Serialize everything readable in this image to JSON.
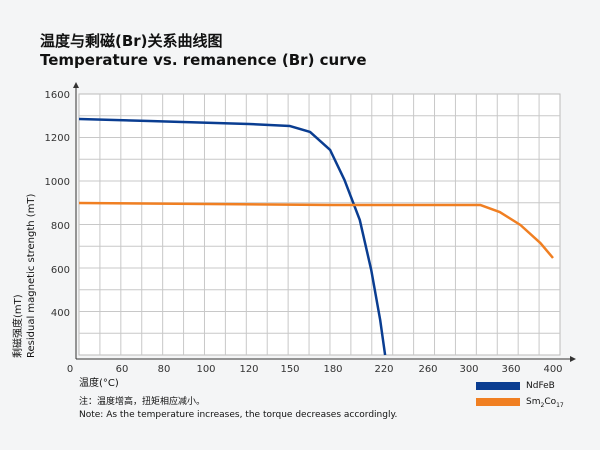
{
  "title_cn": "温度与剩磁(Br)关系曲线图",
  "title_en": "Temperature vs. remanence (Br) curve",
  "chart_data": {
    "type": "line",
    "xlabel": "温度(°C)",
    "ylabel_cn": "剩磁强度(mT)",
    "ylabel_en": "Residual magnetic strength (mT)",
    "x_ticks": [
      0,
      60,
      80,
      100,
      120,
      150,
      180,
      220,
      260,
      300,
      360,
      400
    ],
    "y_ticks": [
      1600,
      1200,
      1000,
      800,
      600,
      400
    ],
    "grid": true,
    "legend_position": "bottom-right",
    "series": [
      {
        "name": "NdFeB",
        "color": "#0a3d91",
        "x": [
          0,
          73,
          120,
          150,
          164,
          178,
          189,
          201,
          210,
          217,
          221
        ],
        "y": [
          1367,
          1349,
          1321,
          1302,
          1247,
          1141,
          1005,
          823,
          595,
          363,
          200
        ]
      },
      {
        "name": "Sm2Co17",
        "name_base": "Sm",
        "sub1": "2",
        "mid": "Co",
        "sub2": "17",
        "color": "#f07f22",
        "x": [
          0,
          180,
          316,
          344,
          369,
          388,
          400
        ],
        "y": [
          900,
          891,
          891,
          859,
          800,
          718,
          650
        ]
      }
    ]
  },
  "note_cn": "注：温度增高，扭矩相应减小。",
  "note_en": "Note: As the temperature increases, the torque decreases accordingly."
}
